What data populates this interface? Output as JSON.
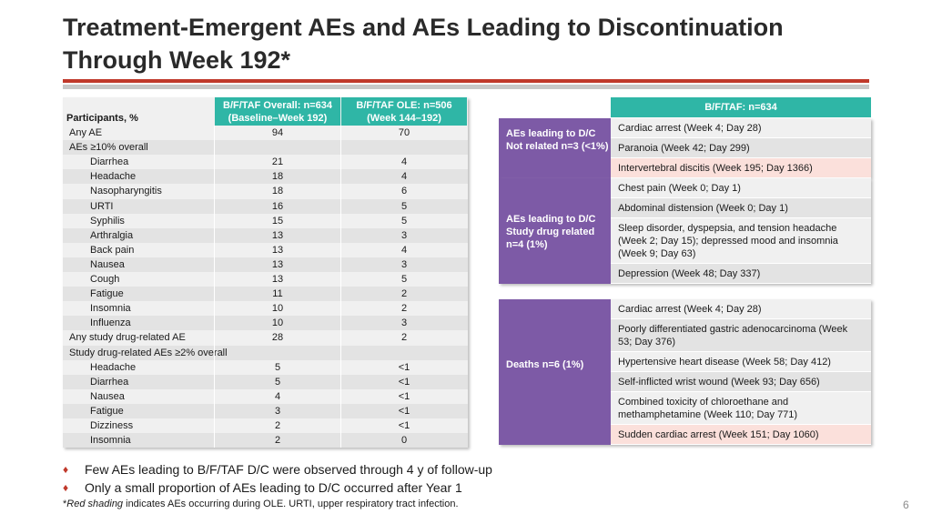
{
  "colors": {
    "header_green": "#2fb6a6",
    "purple": "#7d5aa6",
    "red_rule": "#c0392b",
    "red_shade": "#fbe0db"
  },
  "title": "Treatment-Emergent AEs and AEs Leading to Discontinuation Through Week 192*",
  "left_table": {
    "participants_label": "Participants, %",
    "col1_header": "B/F/TAF Overall: n=634 (Baseline–Week 192)",
    "col2_header": "B/F/TAF OLE: n=506 (Week 144–192)",
    "rows": [
      {
        "label": "Any AE",
        "indent": false,
        "v1": "94",
        "v2": "70"
      },
      {
        "label": "AEs ≥10% overall",
        "indent": false,
        "v1": "",
        "v2": ""
      },
      {
        "label": "Diarrhea",
        "indent": true,
        "v1": "21",
        "v2": "4"
      },
      {
        "label": "Headache",
        "indent": true,
        "v1": "18",
        "v2": "4"
      },
      {
        "label": "Nasopharyngitis",
        "indent": true,
        "v1": "18",
        "v2": "6"
      },
      {
        "label": "URTI",
        "indent": true,
        "v1": "16",
        "v2": "5"
      },
      {
        "label": "Syphilis",
        "indent": true,
        "v1": "15",
        "v2": "5"
      },
      {
        "label": "Arthralgia",
        "indent": true,
        "v1": "13",
        "v2": "3"
      },
      {
        "label": "Back pain",
        "indent": true,
        "v1": "13",
        "v2": "4"
      },
      {
        "label": "Nausea",
        "indent": true,
        "v1": "13",
        "v2": "3"
      },
      {
        "label": "Cough",
        "indent": true,
        "v1": "13",
        "v2": "5"
      },
      {
        "label": "Fatigue",
        "indent": true,
        "v1": "11",
        "v2": "2"
      },
      {
        "label": "Insomnia",
        "indent": true,
        "v1": "10",
        "v2": "2"
      },
      {
        "label": "Influenza",
        "indent": true,
        "v1": "10",
        "v2": "3"
      },
      {
        "label": "Any study drug-related AE",
        "indent": false,
        "v1": "28",
        "v2": "2"
      },
      {
        "label": "Study drug-related AEs ≥2% overall",
        "indent": false,
        "v1": "",
        "v2": ""
      },
      {
        "label": "Headache",
        "indent": true,
        "v1": "5",
        "v2": "<1"
      },
      {
        "label": "Diarrhea",
        "indent": true,
        "v1": "5",
        "v2": "<1"
      },
      {
        "label": "Nausea",
        "indent": true,
        "v1": "4",
        "v2": "<1"
      },
      {
        "label": "Fatigue",
        "indent": true,
        "v1": "3",
        "v2": "<1"
      },
      {
        "label": "Dizziness",
        "indent": true,
        "v1": "2",
        "v2": "<1"
      },
      {
        "label": "Insomnia",
        "indent": true,
        "v1": "2",
        "v2": "0"
      }
    ]
  },
  "right": {
    "header": "B/F/TAF: n=634",
    "groups": [
      {
        "category": "AEs leading to D/C Not related n=3 (<1%)",
        "items": [
          {
            "text": "Cardiac arrest (Week 4; Day 28)",
            "shade": false
          },
          {
            "text": "Paranoia (Week 42; Day 299)",
            "shade": false
          },
          {
            "text": "Intervertebral discitis (Week 195; Day 1366)",
            "shade": true
          }
        ]
      },
      {
        "category": "AEs leading to D/C Study drug related n=4 (1%)",
        "items": [
          {
            "text": "Chest pain (Week 0; Day 1)",
            "shade": false
          },
          {
            "text": "Abdominal distension (Week 0; Day 1)",
            "shade": false
          },
          {
            "text": "Sleep disorder, dyspepsia, and tension headache (Week 2; Day 15); depressed mood and insomnia (Week 9; Day 63)",
            "shade": false
          },
          {
            "text": "Depression (Week 48; Day 337)",
            "shade": false
          }
        ]
      },
      {
        "category": "Deaths n=6 (1%)",
        "items": [
          {
            "text": "Cardiac arrest (Week 4; Day 28)",
            "shade": false
          },
          {
            "text": "Poorly differentiated gastric adenocarcinoma (Week 53; Day 376)",
            "shade": false
          },
          {
            "text": "Hypertensive heart disease (Week 58; Day 412)",
            "shade": false
          },
          {
            "text": "Self-inflicted wrist wound (Week 93; Day 656)",
            "shade": false
          },
          {
            "text": "Combined toxicity of chloroethane and methamphetamine (Week 110; Day 771)",
            "shade": false
          },
          {
            "text": "Sudden cardiac arrest (Week 151; Day 1060)",
            "shade": true
          }
        ]
      }
    ]
  },
  "bullets": [
    "Few AEs leading to B/F/TAF D/C were observed through 4 y of follow-up",
    "Only a small proportion of AEs leading to D/C occurred after Year 1"
  ],
  "bullet_symbol": "♦",
  "footnote": {
    "star": "*",
    "italic": "Red shading",
    "rest": " indicates AEs occurring during OLE. URTI, upper respiratory tract infection."
  },
  "page_number": "6"
}
